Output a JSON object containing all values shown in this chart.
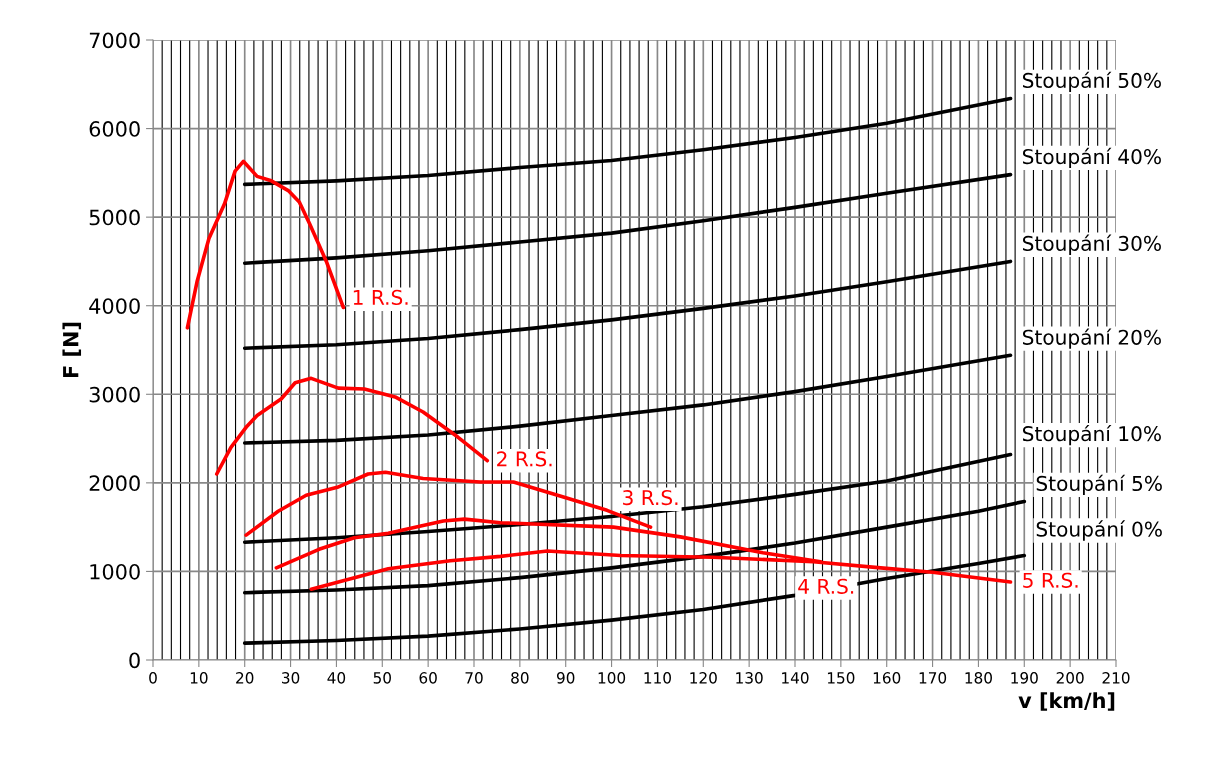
{
  "chart_data": {
    "type": "line",
    "xlabel": "v [km/h]",
    "ylabel": "F [N]",
    "xlim": [
      0,
      210
    ],
    "ylim": [
      0,
      7000
    ],
    "xticks": [
      0,
      10,
      20,
      30,
      40,
      50,
      60,
      70,
      80,
      90,
      100,
      110,
      120,
      130,
      140,
      150,
      160,
      170,
      180,
      190,
      200,
      210
    ],
    "yticks": [
      0,
      1000,
      2000,
      3000,
      4000,
      5000,
      6000,
      7000
    ],
    "grid": true,
    "legend": false,
    "marker": "none",
    "line_style": "solid",
    "series": [
      {
        "name": "Stoupání 50%",
        "color": "#000000",
        "x": [
          20,
          40,
          60,
          80,
          100,
          120,
          140,
          160,
          187
        ],
        "values": [
          5370,
          5410,
          5470,
          5560,
          5640,
          5760,
          5900,
          6060,
          6340
        ]
      },
      {
        "name": "Stoupání 40%",
        "color": "#000000",
        "x": [
          20,
          40,
          60,
          80,
          100,
          120,
          140,
          160,
          187
        ],
        "values": [
          4480,
          4540,
          4620,
          4720,
          4820,
          4960,
          5110,
          5270,
          5480
        ]
      },
      {
        "name": "Stoupání 30%",
        "color": "#000000",
        "x": [
          20,
          40,
          60,
          80,
          100,
          120,
          140,
          160,
          187
        ],
        "values": [
          3520,
          3560,
          3630,
          3730,
          3840,
          3970,
          4110,
          4270,
          4500
        ]
      },
      {
        "name": "Stoupání 20%",
        "color": "#000000",
        "x": [
          20,
          40,
          60,
          80,
          100,
          120,
          140,
          160,
          187
        ],
        "values": [
          2450,
          2480,
          2540,
          2640,
          2760,
          2880,
          3030,
          3200,
          3440
        ]
      },
      {
        "name": "Stoupání 10%",
        "color": "#000000",
        "x": [
          20,
          40,
          60,
          80,
          100,
          120,
          140,
          160,
          187
        ],
        "values": [
          1330,
          1380,
          1450,
          1530,
          1620,
          1730,
          1870,
          2020,
          2320
        ]
      },
      {
        "name": "Stoupání 5%",
        "color": "#000000",
        "x": [
          20,
          40,
          60,
          80,
          100,
          120,
          140,
          160,
          180,
          190
        ],
        "values": [
          760,
          790,
          840,
          930,
          1040,
          1170,
          1320,
          1500,
          1680,
          1790
        ]
      },
      {
        "name": "Stoupání 0%",
        "color": "#000000",
        "x": [
          20,
          40,
          60,
          80,
          100,
          120,
          140,
          160,
          180,
          190
        ],
        "values": [
          190,
          220,
          270,
          350,
          450,
          570,
          730,
          920,
          1090,
          1180
        ]
      },
      {
        "name": "1 R.S.",
        "color": "#ff0000",
        "x": [
          7.5,
          9.6,
          12.2,
          15.6,
          17.9,
          19.7,
          22.7,
          25.8,
          29.5,
          31.9,
          34.1,
          37.8,
          41.5
        ],
        "values": [
          3750,
          4270,
          4760,
          5150,
          5520,
          5630,
          5460,
          5410,
          5300,
          5170,
          4930,
          4500,
          3980
        ]
      },
      {
        "name": "2 R.S.",
        "color": "#ff0000",
        "x": [
          13.9,
          17,
          20.5,
          22.7,
          28,
          31,
          34.5,
          40.4,
          46.1,
          52.8,
          58.9,
          66.4,
          72.9
        ],
        "values": [
          2100,
          2400,
          2640,
          2760,
          2950,
          3130,
          3180,
          3070,
          3060,
          2970,
          2800,
          2520,
          2250
        ]
      },
      {
        "name": "3 R.S.",
        "color": "#ff0000",
        "x": [
          20.3,
          27.3,
          33.4,
          40.2,
          46.9,
          50.7,
          58.9,
          71.4,
          78.6,
          89.5,
          99,
          108.5
        ],
        "values": [
          1410,
          1680,
          1860,
          1950,
          2100,
          2120,
          2050,
          2010,
          2010,
          1840,
          1690,
          1500
        ]
      },
      {
        "name": "4 R.S.",
        "color": "#ff0000",
        "x": [
          26.9,
          36.2,
          43.9,
          51.3,
          63.3,
          67.9,
          75.8,
          100.4,
          115,
          133,
          145.6
        ],
        "values": [
          1040,
          1250,
          1380,
          1430,
          1570,
          1590,
          1550,
          1500,
          1390,
          1210,
          1110
        ]
      },
      {
        "name": "5 R.S.",
        "color": "#ff0000",
        "x": [
          34.5,
          51.3,
          64.8,
          75.8,
          86,
          102,
          122,
          144,
          158.7,
          170,
          187
        ],
        "values": [
          800,
          1030,
          1120,
          1170,
          1230,
          1180,
          1160,
          1110,
          1040,
          990,
          880
        ]
      }
    ]
  }
}
